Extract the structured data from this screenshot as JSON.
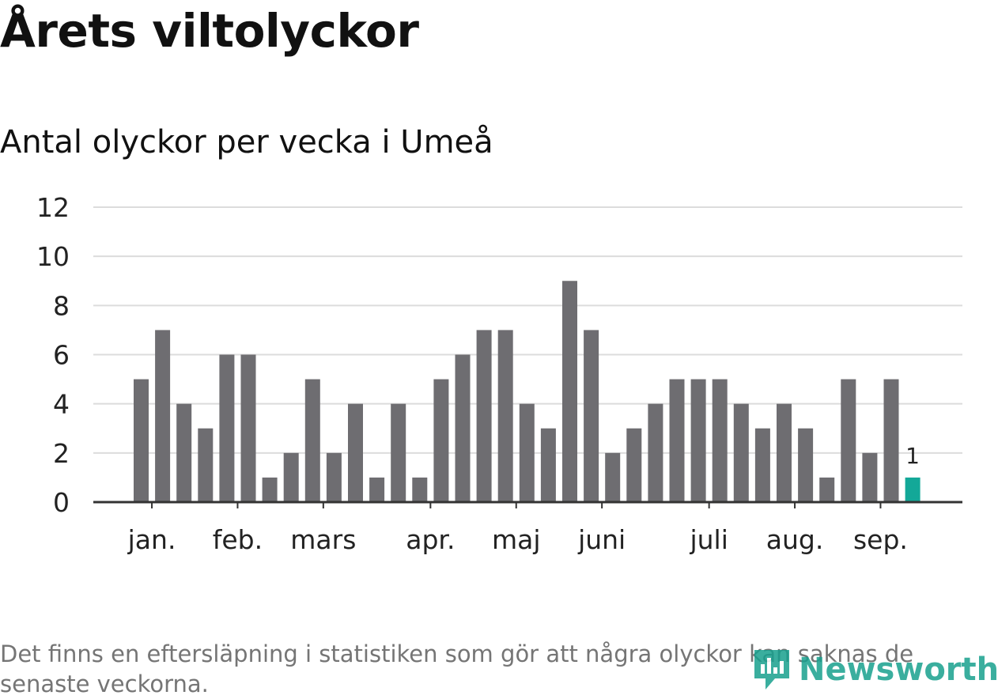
{
  "header": {
    "title": "Årets viltolyckor",
    "subtitle": "Antal olyckor per vecka i Umeå"
  },
  "footer": {
    "note": "Det finns en eftersläpning i statistiken som gör att några olyckor kan saknas de senaste veckorna.",
    "logo_text": "Newsworthy"
  },
  "colors": {
    "bar": "#6e6d71",
    "highlight": "#13a898",
    "grid": "#dcdcdc",
    "axis": "#333333",
    "logo": "#18a08e"
  },
  "chart_data": {
    "type": "bar",
    "title": "Årets viltolyckor",
    "subtitle": "Antal olyckor per vecka i Umeå",
    "xlabel": "",
    "ylabel": "",
    "ylim": [
      0,
      12
    ],
    "yticks": [
      "0",
      "2",
      "4",
      "6",
      "8",
      "10",
      "12"
    ],
    "grid": true,
    "week_count": 37,
    "values": [
      5,
      7,
      4,
      3,
      6,
      6,
      1,
      2,
      5,
      2,
      4,
      1,
      4,
      1,
      5,
      6,
      7,
      7,
      4,
      3,
      9,
      7,
      2,
      3,
      4,
      5,
      5,
      5,
      4,
      3,
      4,
      3,
      1,
      5,
      2,
      5,
      1
    ],
    "highlight_index": 36,
    "highlight_label": "1",
    "month_labels": [
      {
        "label": "jan.",
        "week": 0.5
      },
      {
        "label": "feb.",
        "week": 4.5
      },
      {
        "label": "mars",
        "week": 8.5
      },
      {
        "label": "apr.",
        "week": 13.5
      },
      {
        "label": "maj",
        "week": 17.5
      },
      {
        "label": "juni",
        "week": 21.5
      },
      {
        "label": "juli",
        "week": 26.5
      },
      {
        "label": "aug.",
        "week": 30.5
      },
      {
        "label": "sep.",
        "week": 34.5
      }
    ]
  }
}
